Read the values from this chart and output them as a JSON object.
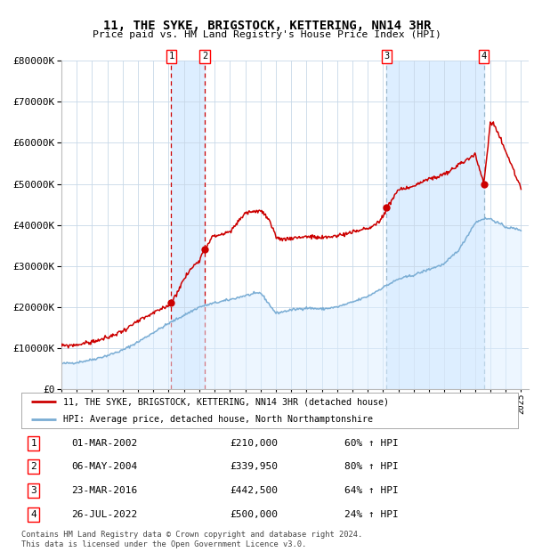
{
  "title": "11, THE SYKE, BRIGSTOCK, KETTERING, NN14 3HR",
  "subtitle": "Price paid vs. HM Land Registry's House Price Index (HPI)",
  "legend_line1": "11, THE SYKE, BRIGSTOCK, KETTERING, NN14 3HR (detached house)",
  "legend_line2": "HPI: Average price, detached house, North Northamptonshire",
  "footer1": "Contains HM Land Registry data © Crown copyright and database right 2024.",
  "footer2": "This data is licensed under the Open Government Licence v3.0.",
  "transactions": [
    {
      "num": 1,
      "date": "01-MAR-2002",
      "price": 210000,
      "pct": "60%",
      "dir": "↑",
      "year": 2002.17
    },
    {
      "num": 2,
      "date": "06-MAY-2004",
      "price": 339950,
      "pct": "80%",
      "dir": "↑",
      "year": 2004.35
    },
    {
      "num": 3,
      "date": "23-MAR-2016",
      "price": 442500,
      "pct": "64%",
      "dir": "↑",
      "year": 2016.23
    },
    {
      "num": 4,
      "date": "26-JUL-2022",
      "price": 500000,
      "pct": "24%",
      "dir": "↑",
      "year": 2022.57
    }
  ],
  "red_line_color": "#cc0000",
  "blue_line_color": "#7aadd4",
  "shade_color": "#ddeeff",
  "grid_color": "#c8d8e8",
  "background_color": "#ffffff",
  "ylim": [
    0,
    800000
  ],
  "xlim_start": 1995.0,
  "xlim_end": 2025.5,
  "hpi_key_years": [
    1995,
    1996,
    1997,
    1998,
    1999,
    2000,
    2001,
    2002,
    2003,
    2004,
    2005,
    2006,
    2007,
    2008,
    2009,
    2010,
    2011,
    2012,
    2013,
    2014,
    2015,
    2016,
    2017,
    2018,
    2019,
    2020,
    2021,
    2022,
    2022.5,
    2023,
    2024,
    2025
  ],
  "hpi_key_vals": [
    62000,
    65000,
    72000,
    82000,
    95000,
    115000,
    138000,
    160000,
    180000,
    200000,
    210000,
    218000,
    228000,
    235000,
    185000,
    193000,
    198000,
    195000,
    200000,
    212000,
    226000,
    248000,
    268000,
    278000,
    292000,
    305000,
    342000,
    405000,
    415000,
    415000,
    395000,
    388000
  ],
  "red_key_years": [
    1995,
    1996,
    1997,
    1998,
    1999,
    2000,
    2001,
    2001.5,
    2002.0,
    2002.17,
    2002.4,
    2003.0,
    2003.5,
    2004.0,
    2004.35,
    2004.8,
    2005.5,
    2006.0,
    2007.0,
    2008.0,
    2008.5,
    2009.0,
    2009.5,
    2010.0,
    2011.0,
    2012.0,
    2013.0,
    2014.0,
    2015.0,
    2015.5,
    2016.0,
    2016.23,
    2017.0,
    2018.0,
    2019.0,
    2020.0,
    2021.0,
    2021.5,
    2022.0,
    2022.57,
    2022.8,
    2023.0,
    2023.2,
    2023.5,
    2024.0,
    2025.0
  ],
  "red_key_vals": [
    105000,
    108000,
    115000,
    125000,
    142000,
    165000,
    185000,
    195000,
    205000,
    210000,
    225000,
    268000,
    295000,
    315000,
    339950,
    370000,
    378000,
    382000,
    430000,
    435000,
    415000,
    370000,
    365000,
    368000,
    372000,
    368000,
    374000,
    382000,
    392000,
    400000,
    420000,
    442500,
    485000,
    495000,
    512000,
    522000,
    548000,
    560000,
    572000,
    500000,
    580000,
    650000,
    645000,
    625000,
    580000,
    490000
  ]
}
